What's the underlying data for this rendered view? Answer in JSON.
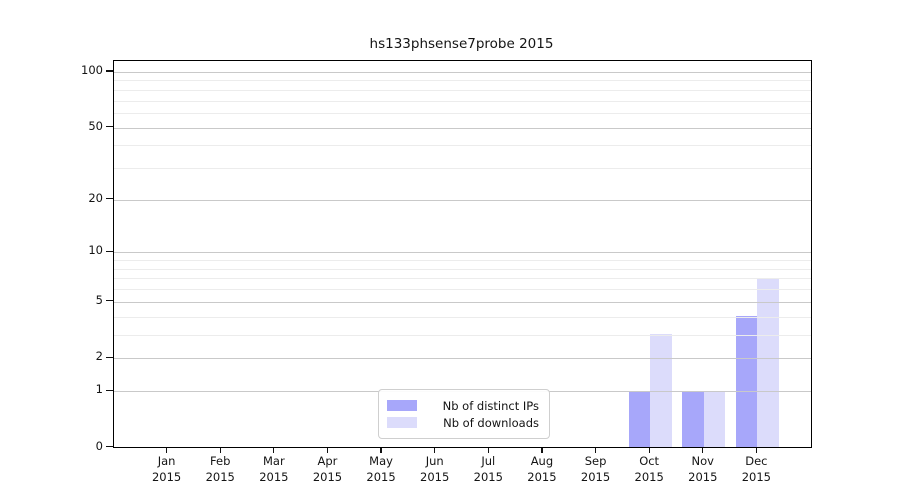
{
  "chart_data": {
    "type": "bar",
    "title": "hs133phsense7probe 2015",
    "categories": [
      "Jan",
      "Feb",
      "Mar",
      "Apr",
      "May",
      "Jun",
      "Jul",
      "Aug",
      "Sep",
      "Oct",
      "Nov",
      "Dec"
    ],
    "year_label": "2015",
    "series": [
      {
        "name": "Nb of distinct IPs",
        "color": "#a7a7fa",
        "values": [
          0,
          0,
          0,
          0,
          0,
          0,
          0,
          0,
          0,
          1,
          1,
          4
        ]
      },
      {
        "name": "Nb of downloads",
        "color": "#dcdcfb",
        "values": [
          0,
          0,
          0,
          0,
          0,
          0,
          0,
          0,
          0,
          3,
          1,
          7
        ]
      }
    ],
    "xlabel": "",
    "ylabel": "",
    "yscale": "log1p",
    "ylim": [
      0,
      114.6
    ],
    "y_major_ticks": [
      0,
      1,
      2,
      5,
      10,
      20,
      50,
      100
    ],
    "y_minor_ticks": [
      3,
      4,
      6,
      7,
      8,
      9,
      30,
      40,
      60,
      70,
      80,
      90
    ],
    "grid": true,
    "legend_position": "lower center"
  }
}
